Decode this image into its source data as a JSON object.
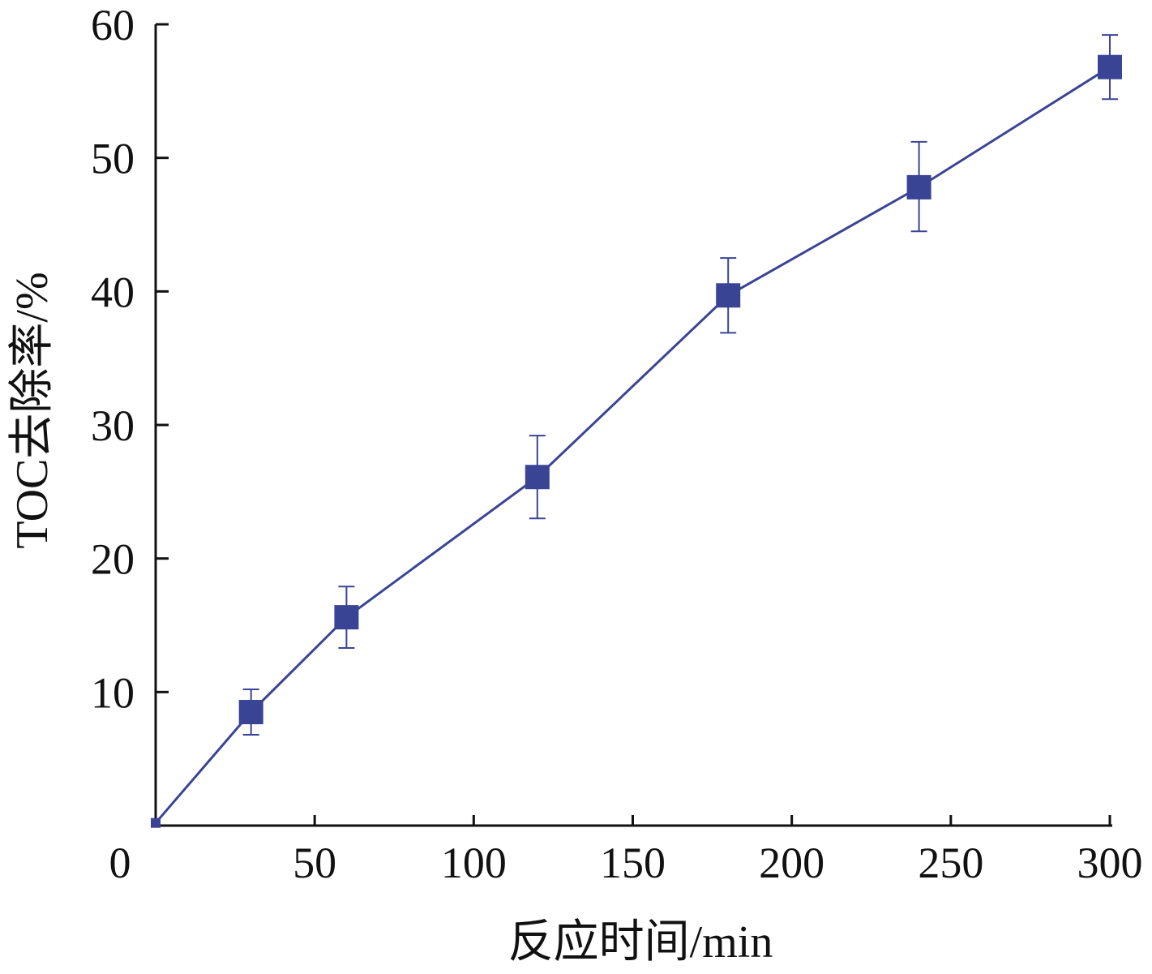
{
  "chart_data": {
    "type": "line",
    "title": "",
    "xlabel": "反应时间/min",
    "ylabel": "TOC去除率/%",
    "xlim": [
      0,
      300
    ],
    "ylim": [
      0,
      60
    ],
    "x_ticks": [
      0,
      50,
      100,
      150,
      200,
      250,
      300
    ],
    "y_ticks": [
      10,
      20,
      30,
      40,
      50,
      60
    ],
    "x_tick_labels": [
      "0",
      "50",
      "100",
      "150",
      "200",
      "250",
      "300"
    ],
    "y_tick_labels": [
      "10",
      "20",
      "30",
      "40",
      "50",
      "60"
    ],
    "grid": false,
    "legend": "none",
    "series": [
      {
        "x": [
          0,
          30,
          60,
          120,
          180,
          240,
          300
        ],
        "y": [
          0.2,
          8.5,
          15.6,
          26.1,
          39.7,
          47.8,
          56.8
        ],
        "error_upper": [
          0.2,
          10.2,
          17.9,
          29.2,
          42.5,
          51.2,
          59.2
        ],
        "error_lower": [
          0.2,
          6.8,
          13.3,
          23.0,
          36.9,
          44.5,
          54.4
        ],
        "color": "#3a4494",
        "marker": "square"
      }
    ]
  }
}
